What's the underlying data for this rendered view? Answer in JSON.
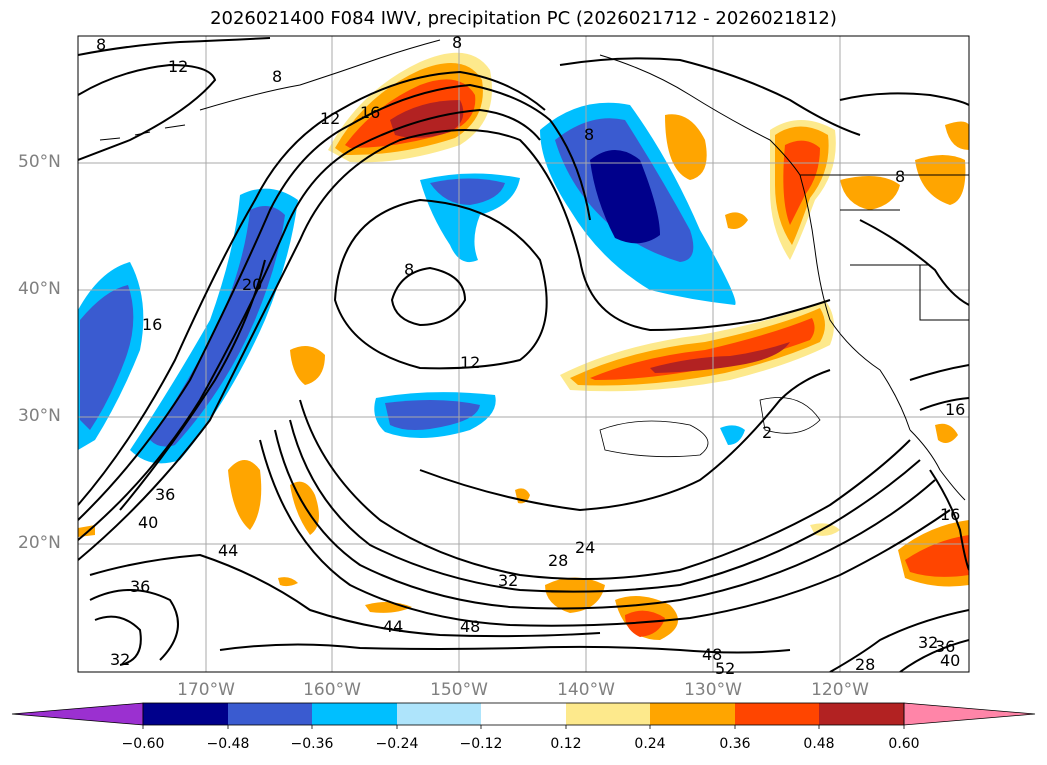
{
  "title": "2026021400 F084 IWV, precipitation PC (2026021712 - 2026021812)",
  "map": {
    "latitude_labels": [
      "50°N",
      "40°N",
      "30°N",
      "20°N"
    ],
    "longitude_labels": [
      "170°W",
      "160°W",
      "150°W",
      "140°W",
      "130°W",
      "120°W"
    ],
    "gridlines": true,
    "contour_field": "IWV",
    "contour_labels": [
      "8",
      "12",
      "8",
      "12",
      "16",
      "8",
      "8",
      "8",
      "20",
      "16",
      "8",
      "12",
      "36",
      "40",
      "44",
      "36",
      "32",
      "24",
      "28",
      "32",
      "44",
      "48",
      "48",
      "52",
      "28",
      "32",
      "36",
      "40",
      "16",
      "16",
      "2"
    ]
  },
  "colorbar": {
    "ticks": [
      "−0.60",
      "−0.48",
      "−0.36",
      "−0.24",
      "−0.12",
      "0.12",
      "0.24",
      "0.36",
      "0.48",
      "0.60"
    ],
    "colors": [
      "#9b30d0",
      "#00008b",
      "#3a5bd0",
      "#00bfff",
      "#aee4fb",
      "#ffffff",
      "#fde98c",
      "#ffa500",
      "#ff4500",
      "#b22222",
      "#ff85a8"
    ]
  }
}
